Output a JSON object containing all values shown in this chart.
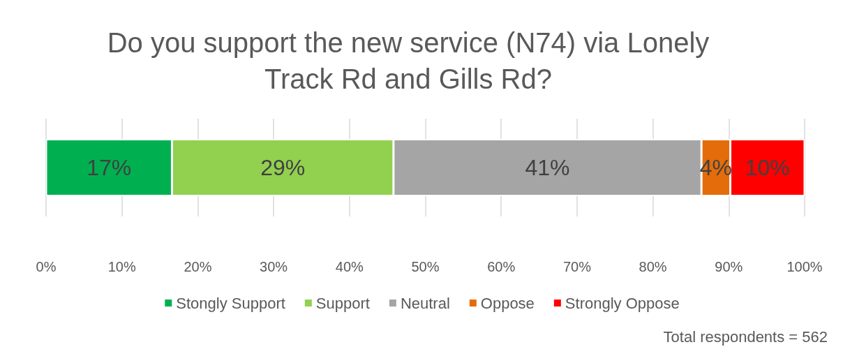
{
  "chart_data": {
    "type": "bar",
    "orientation": "horizontal",
    "stacked": true,
    "title": "Do you support the new service (N74) via Lonely\nTrack Rd and Gills Rd?",
    "categories": [
      null
    ],
    "series": [
      {
        "name": "Stongly Support",
        "color": "#00b050",
        "values": [
          16.6
        ],
        "value_labels": [
          "17%"
        ]
      },
      {
        "name": "Support",
        "color": "#92d050",
        "values": [
          29.2
        ],
        "value_labels": [
          "29%"
        ]
      },
      {
        "name": "Neutral",
        "color": "#a5a5a5",
        "values": [
          40.6
        ],
        "value_labels": [
          "41%"
        ]
      },
      {
        "name": "Oppose",
        "color": "#e46c0a",
        "values": [
          3.8
        ],
        "value_labels": [
          "4%"
        ]
      },
      {
        "name": "Strongly Oppose",
        "color": "#ff0000",
        "values": [
          9.8
        ],
        "value_labels": [
          "10%"
        ]
      }
    ],
    "xlim": [
      0,
      100
    ],
    "xticks": [
      {
        "value": 0,
        "label": "0%"
      },
      {
        "value": 10,
        "label": "10%"
      },
      {
        "value": 20,
        "label": "20%"
      },
      {
        "value": 30,
        "label": "30%"
      },
      {
        "value": 40,
        "label": "40%"
      },
      {
        "value": 50,
        "label": "50%"
      },
      {
        "value": 60,
        "label": "60%"
      },
      {
        "value": 70,
        "label": "70%"
      },
      {
        "value": 80,
        "label": "80%"
      },
      {
        "value": 90,
        "label": "90%"
      },
      {
        "value": 100,
        "label": "100%"
      }
    ],
    "grid": "x",
    "legend": "bottom",
    "annotations": [
      "Total respondents = 562"
    ]
  }
}
